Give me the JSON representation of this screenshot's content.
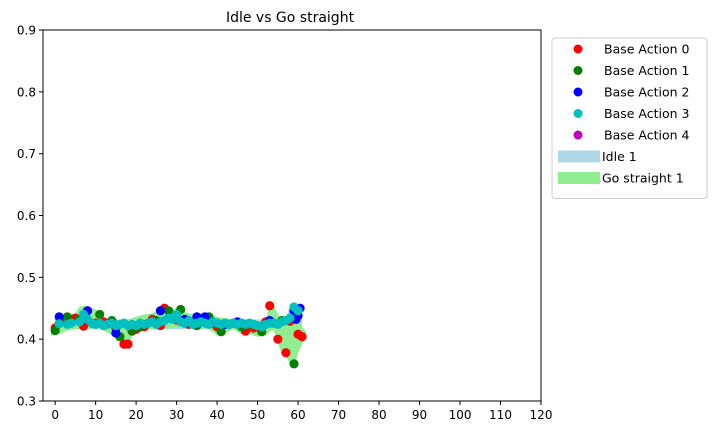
{
  "chart_data": {
    "type": "scatter",
    "title": "Idle vs Go straight",
    "xlabel": "",
    "ylabel": "",
    "xlim": [
      -3,
      120
    ],
    "ylim": [
      0.3,
      0.9
    ],
    "xticks": [
      0,
      10,
      20,
      30,
      40,
      50,
      60,
      70,
      80,
      90,
      100,
      110,
      120
    ],
    "yticks": [
      0.3,
      0.4,
      0.5,
      0.6,
      0.7,
      0.8,
      0.9
    ],
    "grid": false,
    "legend_position": "outside-top-right",
    "series": [
      {
        "name": "Base Action 0",
        "kind": "points",
        "color": "#ff0000",
        "x": [
          0,
          2,
          5,
          7,
          10,
          12,
          15,
          17,
          18,
          19,
          20,
          22,
          24,
          26,
          27,
          30,
          33,
          36,
          40,
          44,
          47,
          49,
          52,
          53,
          55,
          57,
          58,
          60,
          61
        ],
        "y": [
          0.418,
          0.432,
          0.434,
          0.421,
          0.426,
          0.428,
          0.418,
          0.392,
          0.392,
          0.413,
          0.416,
          0.42,
          0.432,
          0.422,
          0.45,
          0.431,
          0.424,
          0.431,
          0.42,
          0.426,
          0.413,
          0.418,
          0.428,
          0.454,
          0.4,
          0.378,
          0.429,
          0.408,
          0.404
        ]
      },
      {
        "name": "Base Action 1",
        "kind": "points",
        "color": "#008000",
        "x": [
          0,
          3,
          6,
          9,
          11,
          14,
          16,
          19,
          21,
          23,
          25,
          28,
          31,
          33,
          35,
          38,
          41,
          43,
          46,
          48,
          51,
          54,
          56,
          59
        ],
        "y": [
          0.414,
          0.436,
          0.432,
          0.426,
          0.44,
          0.43,
          0.404,
          0.414,
          0.42,
          0.426,
          0.43,
          0.446,
          0.448,
          0.428,
          0.422,
          0.436,
          0.412,
          0.424,
          0.42,
          0.424,
          0.412,
          0.426,
          0.43,
          0.36
        ]
      },
      {
        "name": "Base Action 2",
        "kind": "points",
        "color": "#0000ff",
        "x": [
          1,
          8,
          15,
          26,
          32,
          35,
          37,
          42,
          45,
          53,
          59,
          59.5,
          60,
          60.5
        ],
        "y": [
          0.436,
          0.446,
          0.41,
          0.446,
          0.432,
          0.436,
          0.436,
          0.424,
          0.428,
          0.43,
          0.446,
          0.432,
          0.438,
          0.45
        ]
      },
      {
        "name": "Base Action 3",
        "kind": "points",
        "color": "#00bfbf",
        "x": [
          1,
          3,
          4,
          6,
          7,
          8,
          9,
          10,
          11,
          12,
          13,
          14,
          15,
          16,
          17,
          18,
          19,
          20,
          21,
          22,
          23,
          24,
          25,
          26,
          27,
          28,
          29,
          30,
          31,
          32,
          33,
          34,
          35,
          36,
          37,
          38,
          39,
          40,
          41,
          42,
          43,
          44,
          45,
          46,
          47,
          48,
          49,
          50,
          51,
          52,
          53,
          54,
          55,
          56,
          57,
          58,
          59,
          60
        ],
        "y": [
          0.425,
          0.424,
          0.426,
          0.428,
          0.44,
          0.432,
          0.426,
          0.424,
          0.426,
          0.422,
          0.424,
          0.426,
          0.422,
          0.424,
          0.426,
          0.422,
          0.424,
          0.422,
          0.426,
          0.424,
          0.426,
          0.428,
          0.424,
          0.428,
          0.43,
          0.434,
          0.432,
          0.44,
          0.428,
          0.426,
          0.43,
          0.424,
          0.426,
          0.428,
          0.426,
          0.424,
          0.428,
          0.426,
          0.424,
          0.426,
          0.424,
          0.426,
          0.424,
          0.426,
          0.424,
          0.426,
          0.424,
          0.422,
          0.42,
          0.424,
          0.426,
          0.426,
          0.424,
          0.428,
          0.43,
          0.434,
          0.452,
          0.446
        ]
      },
      {
        "name": "Base Action 4",
        "kind": "points",
        "color": "#bf00bf",
        "x": [],
        "y": []
      },
      {
        "name": "Idle 1",
        "kind": "band",
        "color": "#add8e6",
        "x": [
          0,
          5,
          10,
          15,
          20,
          25,
          30,
          35,
          40,
          45,
          50,
          55,
          57,
          58,
          59,
          60,
          61
        ],
        "lower": [
          0.414,
          0.416,
          0.416,
          0.416,
          0.416,
          0.416,
          0.416,
          0.416,
          0.416,
          0.416,
          0.416,
          0.416,
          0.416,
          0.418,
          0.416,
          0.416,
          0.418
        ],
        "upper": [
          0.432,
          0.432,
          0.432,
          0.432,
          0.432,
          0.432,
          0.432,
          0.432,
          0.432,
          0.432,
          0.432,
          0.432,
          0.432,
          0.456,
          0.456,
          0.456,
          0.44
        ]
      },
      {
        "name": "Go straight 1",
        "kind": "band",
        "color": "#90ee90",
        "x": [
          -1,
          1,
          3,
          5,
          6,
          7,
          8,
          10,
          12,
          14,
          15,
          16,
          17,
          18,
          19,
          20,
          22,
          24,
          25,
          26,
          27,
          28,
          30,
          32,
          34,
          36,
          38,
          40,
          42,
          44,
          46,
          48,
          50,
          52,
          53,
          54,
          55,
          56,
          57,
          58,
          59,
          60,
          61,
          62
        ],
        "lower": [
          0.406,
          0.408,
          0.414,
          0.416,
          0.418,
          0.418,
          0.416,
          0.418,
          0.414,
          0.406,
          0.404,
          0.398,
          0.386,
          0.386,
          0.406,
          0.408,
          0.414,
          0.416,
          0.418,
          0.418,
          0.416,
          0.418,
          0.42,
          0.42,
          0.418,
          0.418,
          0.416,
          0.406,
          0.41,
          0.416,
          0.408,
          0.408,
          0.404,
          0.406,
          0.412,
          0.414,
          0.396,
          0.374,
          0.372,
          0.36,
          0.354,
          0.378,
          0.392,
          0.402
        ],
        "upper": [
          0.42,
          0.438,
          0.44,
          0.442,
          0.452,
          0.454,
          0.452,
          0.448,
          0.434,
          0.432,
          0.426,
          0.428,
          0.43,
          0.432,
          0.434,
          0.436,
          0.44,
          0.442,
          0.446,
          0.452,
          0.454,
          0.452,
          0.448,
          0.444,
          0.44,
          0.442,
          0.44,
          0.436,
          0.434,
          0.432,
          0.434,
          0.43,
          0.428,
          0.432,
          0.456,
          0.454,
          0.44,
          0.434,
          0.436,
          0.44,
          0.446,
          0.436,
          0.42,
          0.412
        ]
      }
    ],
    "legend_order": [
      0,
      1,
      2,
      3,
      4,
      5,
      6
    ]
  }
}
